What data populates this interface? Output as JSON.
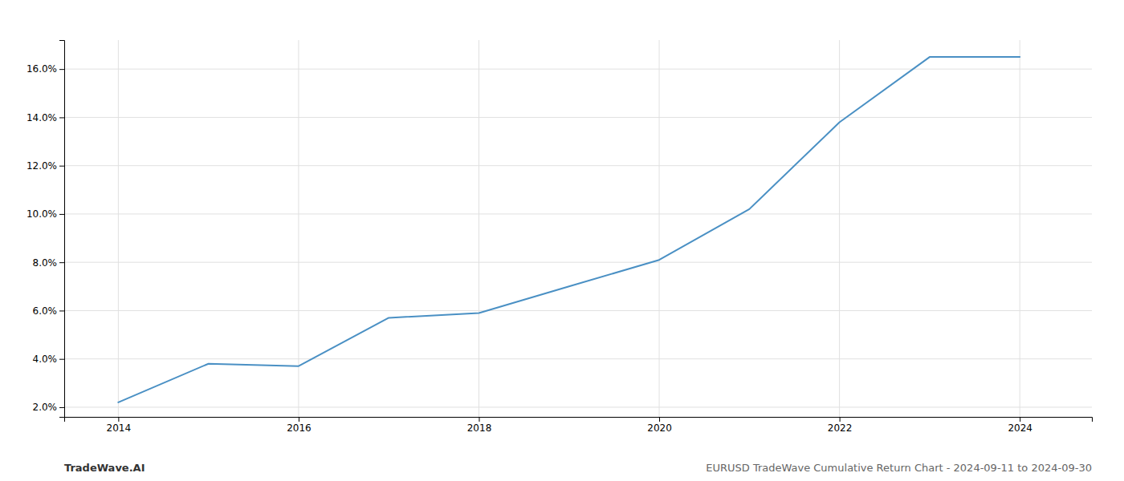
{
  "chart_data": {
    "type": "line",
    "x": [
      2014,
      2015,
      2016,
      2017,
      2018,
      2019,
      2020,
      2021,
      2022,
      2023,
      2024
    ],
    "values": [
      2.2,
      3.8,
      3.7,
      5.7,
      5.9,
      7.0,
      8.1,
      10.2,
      13.8,
      16.5,
      16.5
    ],
    "color": "#4a90c4",
    "xlim": [
      2013.4,
      2024.8
    ],
    "ylim": [
      1.6,
      17.2
    ],
    "xticks": [
      2014,
      2016,
      2018,
      2020,
      2022,
      2024
    ],
    "yticks": [
      {
        "value": 2.0,
        "label": "2.0%"
      },
      {
        "value": 4.0,
        "label": "4.0%"
      },
      {
        "value": 6.0,
        "label": "6.0%"
      },
      {
        "value": 8.0,
        "label": "8.0%"
      },
      {
        "value": 10.0,
        "label": "10.0%"
      },
      {
        "value": 12.0,
        "label": "12.0%"
      },
      {
        "value": 14.0,
        "label": "14.0%"
      },
      {
        "value": 16.0,
        "label": "16.0%"
      }
    ],
    "grid": true,
    "annotations": [
      "TradeWave.AI",
      "EURUSD TradeWave Cumulative Return Chart - 2024-09-11 to 2024-09-30"
    ]
  }
}
